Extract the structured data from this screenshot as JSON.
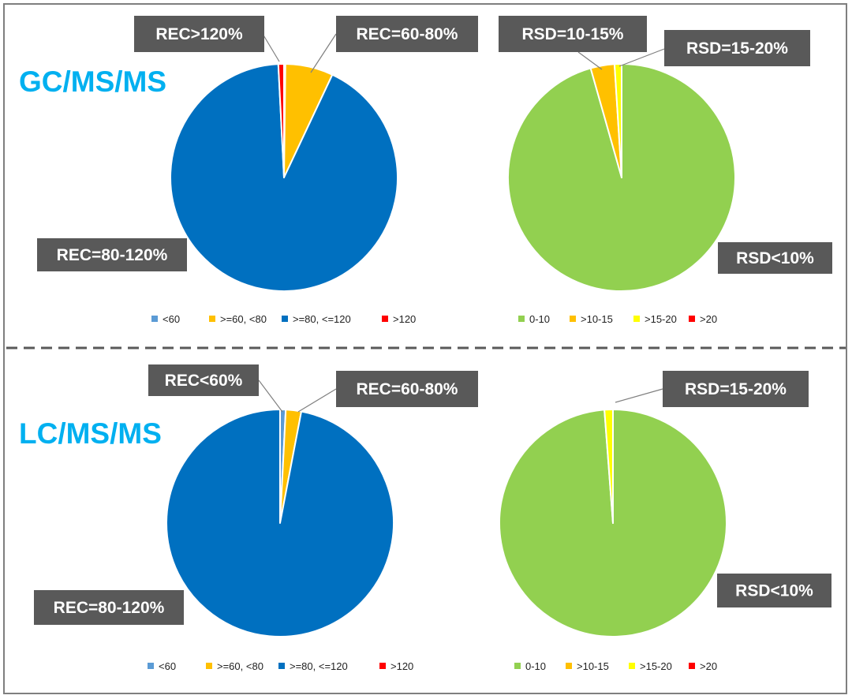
{
  "chart_data": [
    {
      "type": "pie",
      "section_title": "GC/MS/MS",
      "categories": [
        "<60",
        ">=60, <80",
        ">=80, <=120",
        ">120"
      ],
      "values": [
        0.2,
        6.8,
        92.2,
        0.8
      ],
      "colors": [
        "#5b9bd5",
        "#ffc000",
        "#0070c0",
        "#ff0000"
      ],
      "legend_position": "bottom",
      "callouts": [
        {
          "text": "REC>120%",
          "category": ">120"
        },
        {
          "text": "REC=60-80%",
          "category": ">=60, <80"
        },
        {
          "text": "REC=80-120%",
          "category": ">=80, <=120"
        }
      ]
    },
    {
      "type": "pie",
      "categories": [
        "0-10",
        ">10-15",
        ">15-20",
        ">20"
      ],
      "values": [
        95.6,
        3.4,
        1.0,
        0.0
      ],
      "colors": [
        "#92d050",
        "#ffc000",
        "#ffff00",
        "#ff0000"
      ],
      "legend_position": "bottom",
      "callouts": [
        {
          "text": "RSD=10-15%",
          "category": ">10-15"
        },
        {
          "text": "RSD=15-20%",
          "category": ">15-20"
        },
        {
          "text": "RSD<10%",
          "category": "0-10"
        }
      ]
    },
    {
      "type": "pie",
      "section_title": "LC/MS/MS",
      "categories": [
        "<60",
        ">=60, <80",
        ">=80, <=120",
        ">120"
      ],
      "values": [
        0.8,
        2.2,
        97.0,
        0.0
      ],
      "colors": [
        "#5b9bd5",
        "#ffc000",
        "#0070c0",
        "#ff0000"
      ],
      "legend_position": "bottom",
      "callouts": [
        {
          "text": "REC<60%",
          "category": "<60"
        },
        {
          "text": "REC=60-80%",
          "category": ">=60, <80"
        },
        {
          "text": "REC=80-120%",
          "category": ">=80, <=120"
        }
      ]
    },
    {
      "type": "pie",
      "categories": [
        "0-10",
        ">10-15",
        ">15-20",
        ">20"
      ],
      "values": [
        98.8,
        0.0,
        1.2,
        0.0
      ],
      "colors": [
        "#92d050",
        "#ffc000",
        "#ffff00",
        "#ff0000"
      ],
      "legend_position": "bottom",
      "callouts": [
        {
          "text": "RSD=15-20%",
          "category": ">15-20"
        },
        {
          "text": "RSD<10%",
          "category": "0-10"
        }
      ]
    }
  ],
  "colors": {
    "divider": "#595959",
    "callout_box": "#595959",
    "title": "#00b0f0",
    "frame": "#7f7f7f"
  }
}
